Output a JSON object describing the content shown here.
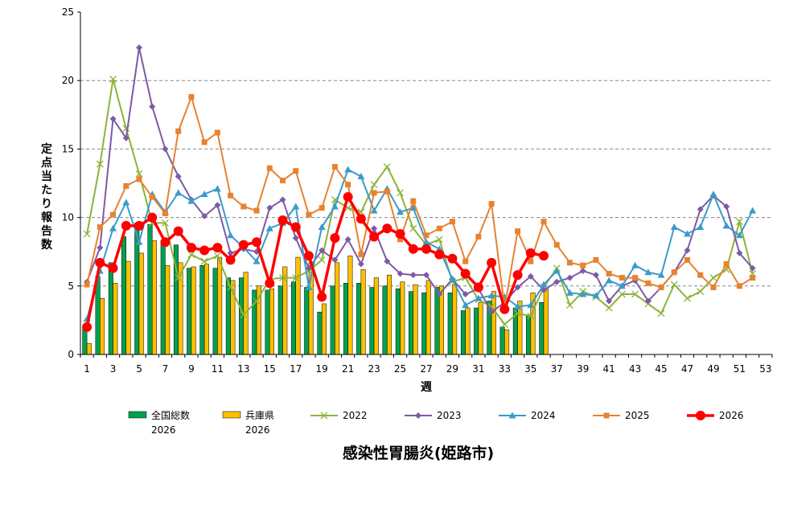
{
  "chart_data": {
    "type": "bar+line",
    "title": "感染性胃腸炎(姫路市)",
    "ylabel": "定点当たり報告数",
    "xlabel": "週",
    "ylim": [
      0,
      25
    ],
    "yticks": [
      0,
      5,
      10,
      15,
      20,
      25
    ],
    "xlim": [
      1,
      53
    ],
    "xticks": [
      1,
      3,
      5,
      7,
      9,
      11,
      13,
      15,
      17,
      19,
      21,
      23,
      25,
      27,
      29,
      31,
      33,
      35,
      37,
      39,
      41,
      43,
      45,
      47,
      49,
      51,
      53
    ],
    "grid": "horizontal-dashed",
    "legend_position": "bottom",
    "bar_series": [
      {
        "name": "全国総数",
        "name2": "2026",
        "color": "#00a050",
        "values": [
          2.0,
          5.7,
          6.7,
          8.6,
          9.6,
          9.5,
          8.3,
          8.0,
          6.3,
          6.5,
          6.3,
          5.6,
          5.6,
          4.7,
          4.7,
          5.0,
          5.3,
          4.9,
          3.1,
          5.0,
          5.2,
          5.2,
          4.9,
          5.0,
          4.8,
          4.6,
          4.5,
          4.9,
          4.5,
          3.2,
          3.4,
          3.9,
          2.0,
          3.4,
          2.9,
          3.8
        ]
      },
      {
        "name": "兵庫県",
        "name2": "2026",
        "color": "#ffc000",
        "values": [
          0.8,
          4.1,
          5.2,
          6.8,
          7.4,
          8.3,
          6.5,
          6.7,
          6.4,
          6.6,
          7.1,
          5.4,
          6.0,
          5.0,
          4.8,
          6.4,
          7.1,
          6.7,
          3.7,
          6.7,
          7.2,
          6.2,
          5.6,
          5.8,
          5.3,
          5.1,
          5.4,
          5.0,
          5.1,
          3.4,
          3.8,
          4.6,
          1.8,
          3.9,
          4.5,
          4.8
        ]
      }
    ],
    "line_series": [
      {
        "name": "2022",
        "color": "#8cb33a",
        "marker": "x",
        "values": [
          8.8,
          13.9,
          20.1,
          16.5,
          13.2,
          9.6,
          9.6,
          5.6,
          7.3,
          6.8,
          7.2,
          4.9,
          2.9,
          3.9,
          5.5,
          5.6,
          5.6,
          6.1,
          6.9,
          11.3,
          10.7,
          10.4,
          12.4,
          13.7,
          11.8,
          9.2,
          8.0,
          8.4,
          5.3,
          5.6,
          4.0,
          3.5,
          2.2,
          3.0,
          2.8,
          4.9,
          6.3,
          3.6,
          4.6,
          4.2,
          3.4,
          4.4,
          4.4,
          3.7,
          3.0,
          5.1,
          4.1,
          4.6,
          5.6,
          6.2,
          9.7,
          5.9
        ]
      },
      {
        "name": "2023",
        "color": "#7d5aa6",
        "marker": "diamond",
        "values": [
          5.3,
          7.8,
          17.2,
          15.8,
          22.4,
          18.1,
          15.0,
          13.0,
          11.3,
          10.1,
          10.9,
          7.4,
          7.7,
          7.5,
          10.7,
          11.3,
          8.5,
          6.3,
          7.6,
          6.9,
          8.4,
          6.6,
          9.2,
          6.8,
          5.9,
          5.8,
          5.8,
          4.4,
          5.5,
          4.4,
          4.8,
          3.1,
          3.8,
          4.9,
          5.7,
          4.7,
          5.3,
          5.6,
          6.1,
          5.8,
          3.9,
          5.0,
          5.4,
          3.9,
          4.9,
          6.0,
          7.6,
          10.6,
          11.6,
          10.8,
          7.4,
          6.3
        ]
      },
      {
        "name": "2024",
        "color": "#3a9bc9",
        "marker": "triangle",
        "values": [
          2.6,
          6.1,
          9.2,
          11.1,
          8.2,
          11.7,
          10.4,
          11.8,
          11.2,
          11.7,
          12.1,
          8.7,
          7.8,
          6.8,
          9.2,
          9.6,
          10.8,
          4.9,
          9.3,
          10.8,
          13.5,
          13.0,
          10.5,
          12.1,
          10.4,
          10.7,
          8.2,
          7.7,
          5.5,
          3.6,
          4.1,
          4.3,
          4.2,
          3.5,
          3.6,
          5.1,
          6.1,
          4.5,
          4.4,
          4.3,
          5.4,
          5.0,
          6.5,
          6.0,
          5.8,
          9.3,
          8.8,
          9.3,
          11.7,
          9.4,
          8.7,
          10.5
        ]
      },
      {
        "name": "2025",
        "color": "#e8822f",
        "marker": "square",
        "values": [
          5.1,
          9.3,
          10.2,
          12.3,
          12.8,
          11.5,
          10.3,
          16.3,
          18.8,
          15.5,
          16.2,
          11.6,
          10.8,
          10.5,
          13.6,
          12.7,
          13.4,
          10.2,
          10.7,
          13.7,
          12.4,
          7.3,
          11.8,
          11.9,
          8.4,
          11.2,
          8.7,
          9.2,
          9.7,
          6.8,
          8.6,
          11.0,
          3.4,
          9.0,
          6.8,
          9.7,
          8.0,
          6.7,
          6.5,
          6.9,
          5.9,
          5.6,
          5.6,
          5.2,
          4.9,
          6.0,
          6.9,
          5.8,
          4.9,
          6.6,
          5.0,
          5.6
        ]
      },
      {
        "name": "2026",
        "color": "#ff0000",
        "marker": "circle",
        "values": [
          2.0,
          6.7,
          6.3,
          9.4,
          9.4,
          10.0,
          8.2,
          9.0,
          7.8,
          7.6,
          7.8,
          6.9,
          8.0,
          8.2,
          5.2,
          9.8,
          9.3,
          7.2,
          4.2,
          8.5,
          11.5,
          9.9,
          8.6,
          9.2,
          8.8,
          7.7,
          7.7,
          7.3,
          7.0,
          5.9,
          4.9,
          6.7,
          3.3,
          5.8,
          7.4,
          7.2
        ]
      }
    ]
  }
}
